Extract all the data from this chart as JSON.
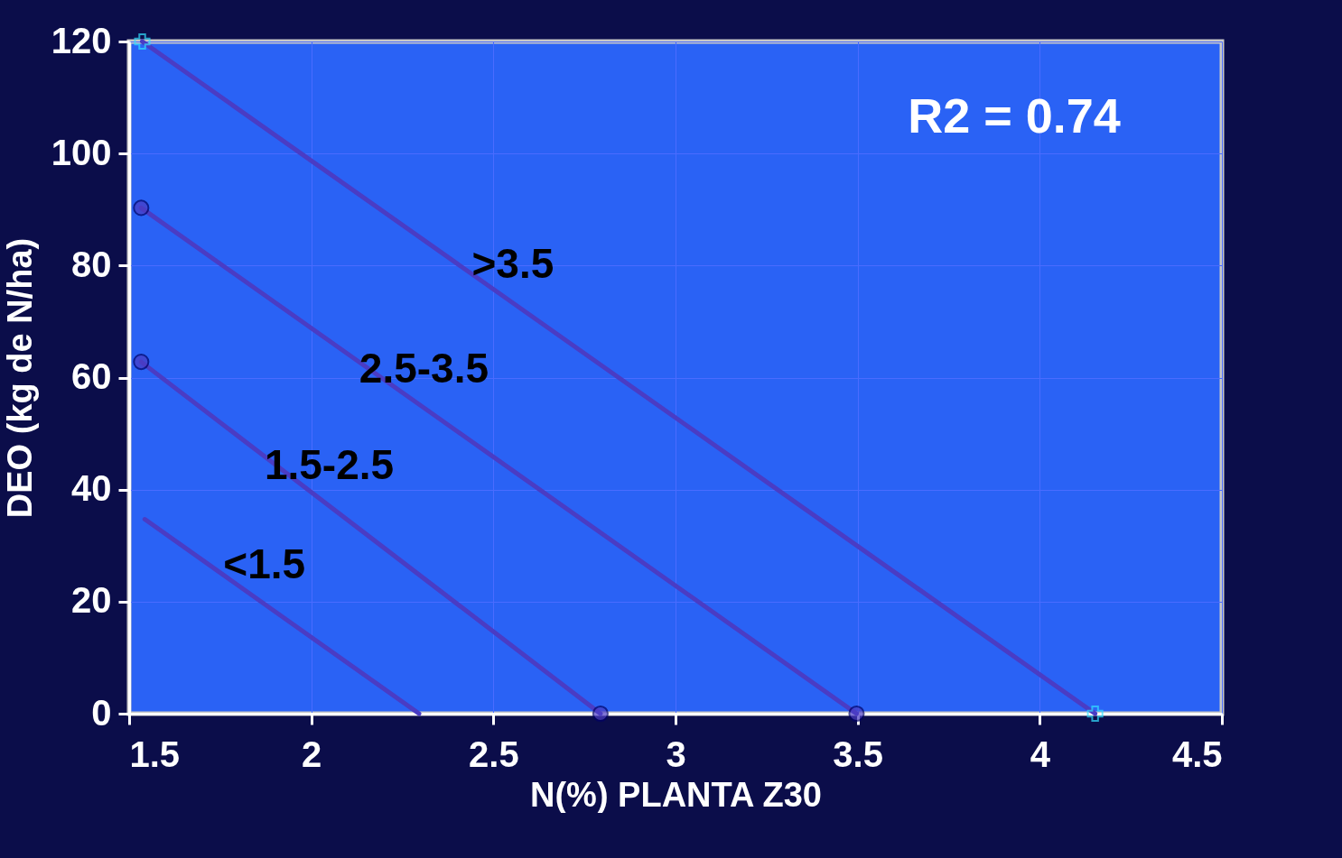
{
  "chart_data": {
    "type": "line",
    "xlabel": "N(%) PLANTA Z30",
    "ylabel": "DEO (kg de N/ha)",
    "xlim": [
      1.5,
      4.5
    ],
    "xticks": [
      1.5,
      2,
      2.5,
      3,
      3.5,
      4,
      4.5
    ],
    "ylim": [
      0,
      120
    ],
    "yticks": [
      0,
      20,
      40,
      60,
      80,
      100,
      120
    ],
    "grid": true,
    "line_style": "solid",
    "annotations": [
      "R2 = 0.74"
    ],
    "series": [
      {
        "name": ">3.5",
        "color": "#4a3cc4",
        "marker": "cross",
        "x": [
          1.536,
          4.152
        ],
        "values": [
          120,
          0
        ]
      },
      {
        "name": "2.5-3.5",
        "color": "#4a3cc4",
        "marker": "circle",
        "x": [
          1.533,
          3.497
        ],
        "values": [
          90.3,
          0
        ]
      },
      {
        "name": "1.5-2.5",
        "color": "#4a3cc4",
        "marker": "circle",
        "x": [
          1.533,
          2.794
        ],
        "values": [
          62.8,
          0
        ]
      },
      {
        "name": "<1.5",
        "color": "#4a3cc4",
        "marker": "none",
        "x": [
          1.543,
          2.296
        ],
        "values": [
          34.7,
          0
        ]
      }
    ]
  }
}
